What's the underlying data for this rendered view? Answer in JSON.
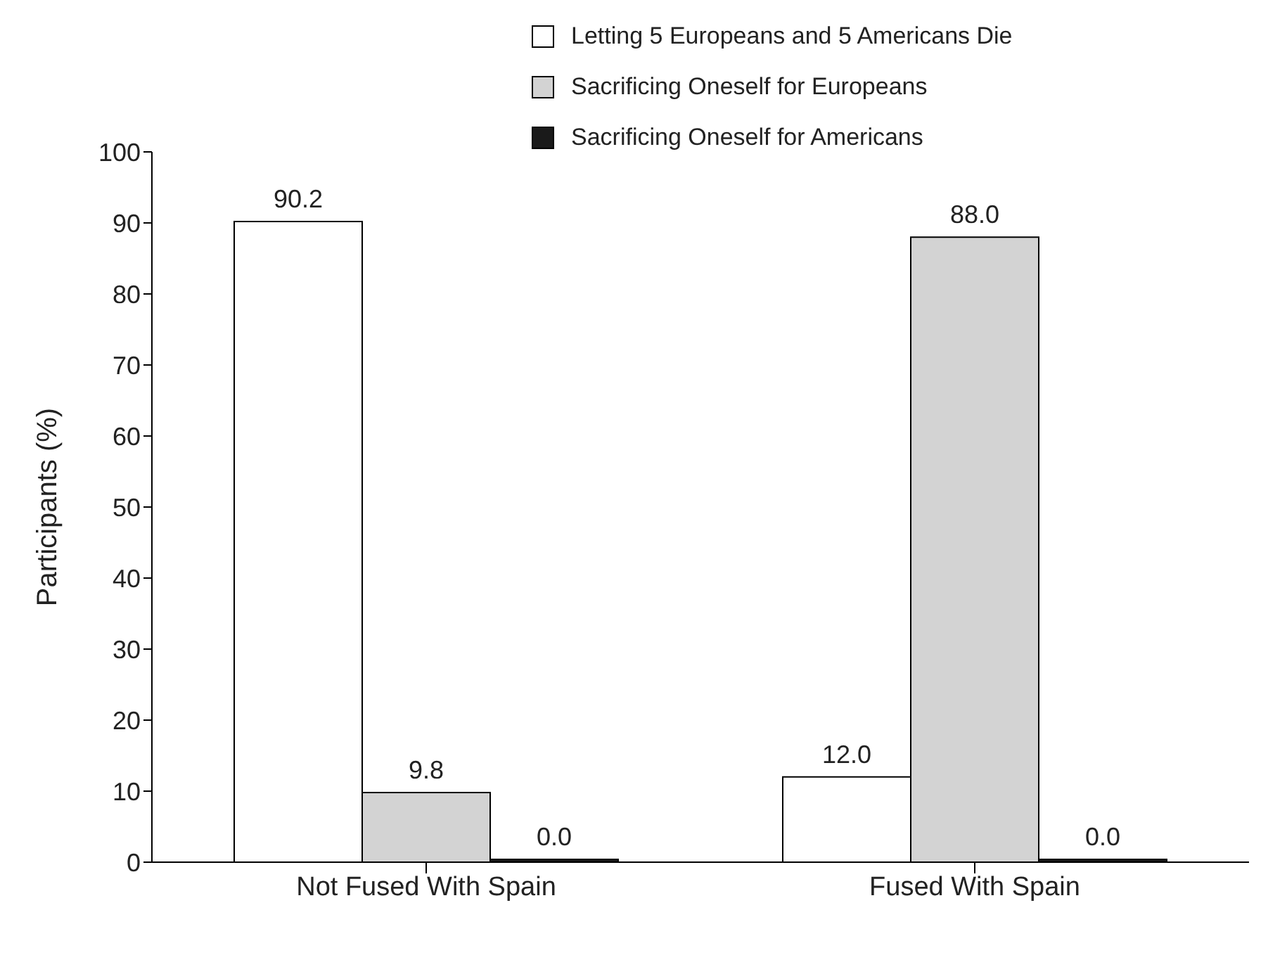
{
  "chart_data": {
    "type": "bar",
    "ylabel": "Participants (%)",
    "categories": [
      "Not Fused With Spain",
      "Fused With Spain"
    ],
    "series": [
      {
        "name": "Letting 5 Europeans and 5 Americans Die",
        "color": "#ffffff",
        "values": [
          90.2,
          12.0
        ],
        "value_labels": [
          "90.2",
          "12.0"
        ]
      },
      {
        "name": "Sacrificing Oneself for Europeans",
        "color": "#d3d3d3",
        "values": [
          9.8,
          88.0
        ],
        "value_labels": [
          "9.8",
          "88.0"
        ]
      },
      {
        "name": "Sacrificing Oneself for Americans",
        "color": "#1a1a1a",
        "values": [
          0.0,
          0.0
        ],
        "value_labels": [
          "0.0",
          "0.0"
        ]
      }
    ],
    "ylim": [
      0,
      100
    ],
    "yticks": [
      0,
      10,
      20,
      30,
      40,
      50,
      60,
      70,
      80,
      90,
      100
    ],
    "grid": false,
    "legend": "top right"
  }
}
